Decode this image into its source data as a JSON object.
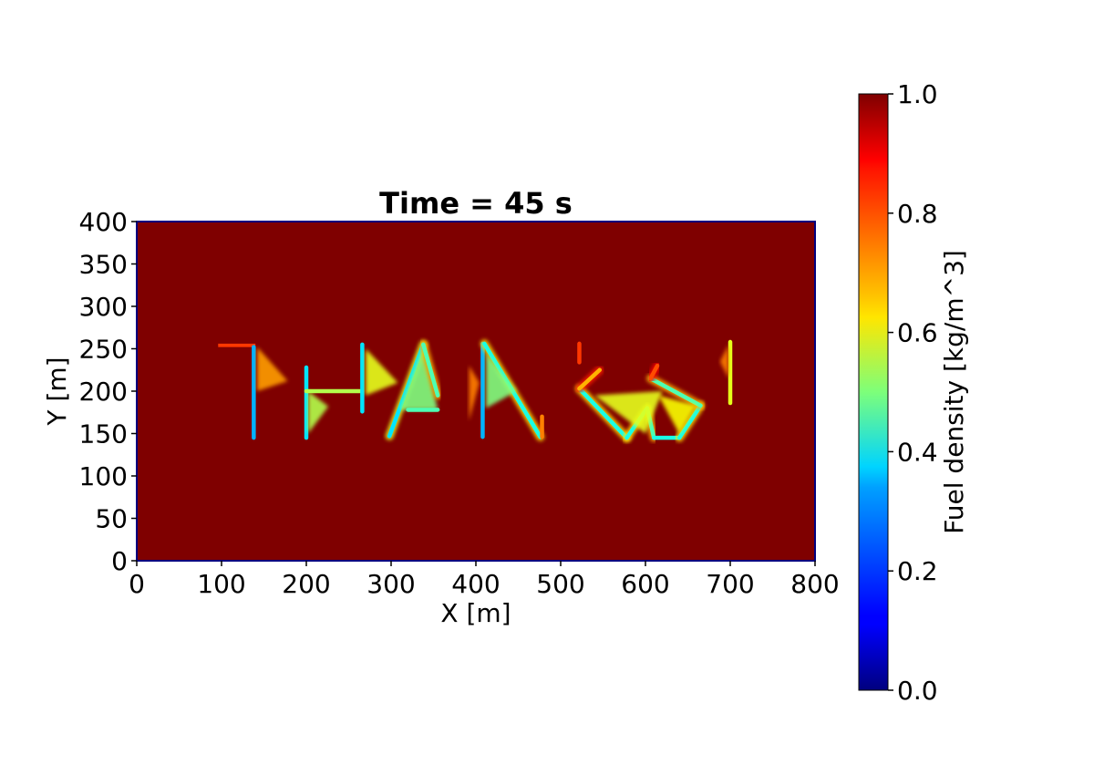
{
  "chart_data": {
    "type": "heatmap",
    "title": "Time = 45 s",
    "xlabel": "X [m]",
    "ylabel": "Y [m]",
    "xlim": [
      0,
      800
    ],
    "ylim": [
      0,
      400
    ],
    "x_ticks": [
      "0",
      "100",
      "200",
      "300",
      "400",
      "500",
      "600",
      "700",
      "800"
    ],
    "y_ticks": [
      "0",
      "50",
      "100",
      "150",
      "200",
      "250",
      "300",
      "350",
      "400"
    ],
    "colorbar": {
      "label": "Fuel density [kg/m^3]",
      "colormap": "jet",
      "range": [
        0.0,
        1.0
      ],
      "ticks": [
        "0.0",
        "0.2",
        "0.4",
        "0.6",
        "0.8",
        "1.0"
      ]
    },
    "background_value": 1.0,
    "burn_features": [
      {
        "kind": "bar",
        "x": [
          96,
          140
        ],
        "y": [
          252,
          256
        ],
        "value": 0.82
      },
      {
        "kind": "line",
        "points": [
          [
            138,
            145
          ],
          [
            138,
            252
          ]
        ],
        "value": 0.3,
        "halo": 0.65
      },
      {
        "kind": "tri",
        "points": [
          [
            142,
            252
          ],
          [
            142,
            200
          ],
          [
            178,
            212
          ]
        ],
        "value": 0.72
      },
      {
        "kind": "line",
        "points": [
          [
            200,
            145
          ],
          [
            200,
            228
          ]
        ],
        "value": 0.35,
        "halo": 0.6
      },
      {
        "kind": "tri",
        "points": [
          [
            202,
            200
          ],
          [
            202,
            150
          ],
          [
            226,
            182
          ]
        ],
        "value": 0.55
      },
      {
        "kind": "line",
        "points": [
          [
            200,
            200
          ],
          [
            266,
            200
          ]
        ],
        "value": 0.55,
        "halo": 0.7
      },
      {
        "kind": "line",
        "points": [
          [
            266,
            176
          ],
          [
            266,
            255
          ]
        ],
        "value": 0.35,
        "halo": 0.6
      },
      {
        "kind": "tri",
        "points": [
          [
            270,
            250
          ],
          [
            270,
            195
          ],
          [
            308,
            210
          ]
        ],
        "value": 0.6
      },
      {
        "kind": "line",
        "points": [
          [
            298,
            147
          ],
          [
            338,
            255
          ]
        ],
        "value": 0.35,
        "halo": 0.6
      },
      {
        "kind": "tri",
        "points": [
          [
            310,
            178
          ],
          [
            338,
            255
          ],
          [
            355,
            178
          ]
        ],
        "value": 0.5
      },
      {
        "kind": "line",
        "points": [
          [
            338,
            255
          ],
          [
            355,
            195
          ]
        ],
        "value": 0.45,
        "halo": 0.7
      },
      {
        "kind": "line",
        "points": [
          [
            320,
            178
          ],
          [
            355,
            178
          ]
        ],
        "value": 0.45,
        "halo": 0.7
      },
      {
        "kind": "line",
        "points": [
          [
            408,
            146
          ],
          [
            408,
            256
          ]
        ],
        "value": 0.3,
        "halo": 0.6
      },
      {
        "kind": "line",
        "points": [
          [
            410,
            256
          ],
          [
            476,
            146
          ]
        ],
        "value": 0.4,
        "halo": 0.65
      },
      {
        "kind": "tri",
        "points": [
          [
            392,
            230
          ],
          [
            404,
            210
          ],
          [
            392,
            165
          ]
        ],
        "value": 0.75
      },
      {
        "kind": "tri",
        "points": [
          [
            412,
            245
          ],
          [
            412,
            180
          ],
          [
            448,
            200
          ]
        ],
        "value": 0.5
      },
      {
        "kind": "line",
        "points": [
          [
            478,
            146
          ],
          [
            478,
            170
          ]
        ],
        "value": 0.75,
        "halo": 0.85
      },
      {
        "kind": "line",
        "points": [
          [
            522,
            234
          ],
          [
            522,
            256
          ]
        ],
        "value": 0.82,
        "halo": 0.9
      },
      {
        "kind": "line",
        "points": [
          [
            522,
            203
          ],
          [
            578,
            145
          ]
        ],
        "value": 0.4,
        "halo": 0.65
      },
      {
        "kind": "line",
        "points": [
          [
            522,
            203
          ],
          [
            546,
            225
          ]
        ],
        "value": 0.7,
        "halo": 0.85
      },
      {
        "kind": "line",
        "points": [
          [
            578,
            145
          ],
          [
            602,
            180
          ]
        ],
        "value": 0.4,
        "halo": 0.65
      },
      {
        "kind": "line",
        "points": [
          [
            602,
            180
          ],
          [
            610,
            145
          ]
        ],
        "value": 0.45,
        "halo": 0.7
      },
      {
        "kind": "line",
        "points": [
          [
            610,
            145
          ],
          [
            640,
            145
          ]
        ],
        "value": 0.4,
        "halo": 0.65
      },
      {
        "kind": "line",
        "points": [
          [
            640,
            145
          ],
          [
            665,
            183
          ]
        ],
        "value": 0.4,
        "halo": 0.65
      },
      {
        "kind": "line",
        "points": [
          [
            665,
            183
          ],
          [
            606,
            215
          ]
        ],
        "value": 0.45,
        "halo": 0.7
      },
      {
        "kind": "line",
        "points": [
          [
            606,
            215
          ],
          [
            614,
            230
          ]
        ],
        "value": 0.8,
        "halo": 0.88
      },
      {
        "kind": "tri",
        "points": [
          [
            540,
            195
          ],
          [
            600,
            150
          ],
          [
            620,
            200
          ]
        ],
        "value": 0.6
      },
      {
        "kind": "tri",
        "points": [
          [
            615,
            195
          ],
          [
            660,
            183
          ],
          [
            640,
            150
          ]
        ],
        "value": 0.62
      },
      {
        "kind": "line",
        "points": [
          [
            700,
            186
          ],
          [
            700,
            258
          ]
        ],
        "value": 0.6,
        "halo": 0.72
      },
      {
        "kind": "tri",
        "points": [
          [
            688,
            235
          ],
          [
            698,
            255
          ],
          [
            698,
            215
          ]
        ],
        "value": 0.75
      }
    ]
  }
}
